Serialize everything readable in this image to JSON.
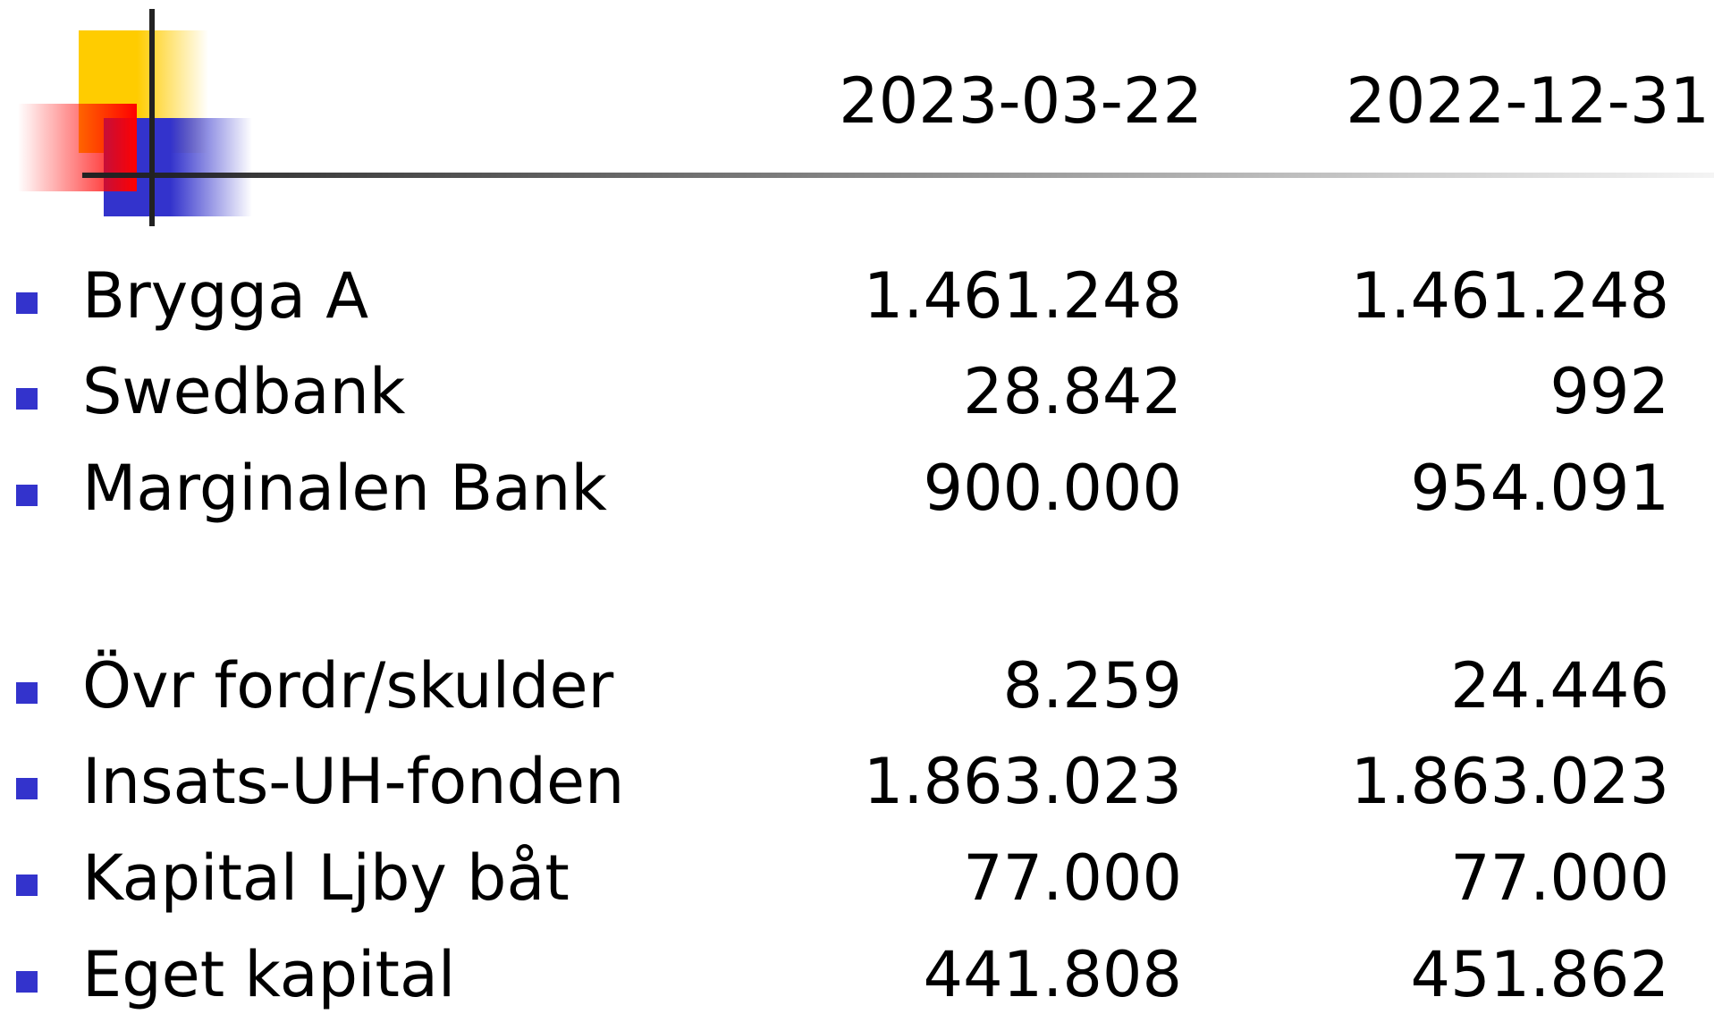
{
  "header": {
    "columns": [
      "2023-03-22",
      "2022-12-31"
    ]
  },
  "rows": [
    {
      "label": "Brygga A",
      "values": [
        "1.461.248",
        "1.461.248"
      ]
    },
    {
      "label": "Swedbank",
      "values": [
        "28.842",
        "992"
      ]
    },
    {
      "label": "Marginalen Bank",
      "values": [
        "900.000",
        "954.091"
      ]
    },
    {
      "label": "Övr fordr/skulder",
      "values": [
        "8.259",
        "24.446"
      ]
    },
    {
      "label": "Insats-UH-fonden",
      "values": [
        "1.863.023",
        "1.863.023"
      ]
    },
    {
      "label": "Kapital Ljby båt",
      "values": [
        "77.000",
        "77.000"
      ]
    },
    {
      "label": "Eget kapital",
      "values": [
        "441.808",
        "451.862"
      ]
    }
  ]
}
